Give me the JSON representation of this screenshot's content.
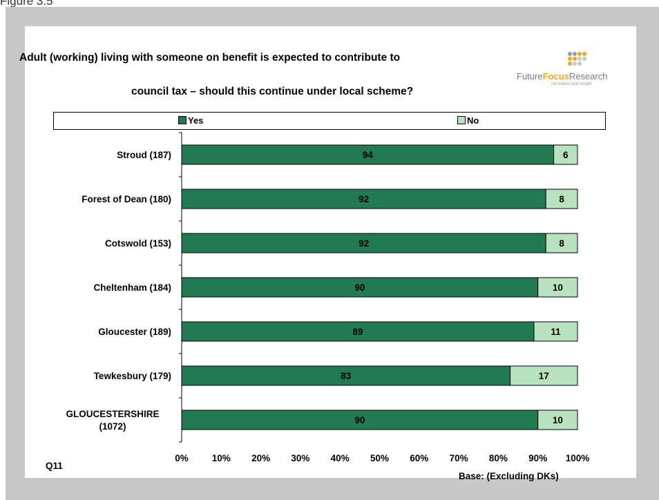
{
  "figure_label": "Figure 3.5",
  "colors": {
    "yes": "#217a52",
    "no": "#b8e2bf",
    "frame": "#c8c8c8",
    "logo_accent": "#f5a623"
  },
  "logo": {
    "name_part1": "Future",
    "name_part2": "Focus",
    "name_part3": "Research",
    "tagline": "Innovation and Insight"
  },
  "footer": {
    "question": "Q11",
    "base": "Base: (Excluding DKs)"
  },
  "chart_data": {
    "type": "bar",
    "orientation": "horizontal",
    "stacked": true,
    "title_line1": "Adult (working) living with someone on benefit is expected to contribute to",
    "title_line2": "council tax – should this continue under local scheme?",
    "categories": [
      "Stroud (187)",
      "Forest of Dean (180)",
      "Cotswold (153)",
      "Cheltenham (184)",
      "Gloucester (189)",
      "Tewkesbury (179)",
      "GLOUCESTERSHIRE (1072)"
    ],
    "category_lines": [
      [
        "Stroud (187)"
      ],
      [
        "Forest of Dean (180)"
      ],
      [
        "Cotswold (153)"
      ],
      [
        "Cheltenham (184)"
      ],
      [
        "Gloucester (189)"
      ],
      [
        "Tewkesbury (179)"
      ],
      [
        "GLOUCESTERSHIRE",
        "(1072)"
      ]
    ],
    "series": [
      {
        "name": "Yes",
        "values": [
          94,
          92,
          92,
          90,
          89,
          83,
          90
        ]
      },
      {
        "name": "No",
        "values": [
          6,
          8,
          8,
          10,
          11,
          17,
          10
        ]
      }
    ],
    "xlim": [
      0,
      100
    ],
    "xticks": [
      "0%",
      "10%",
      "20%",
      "30%",
      "40%",
      "50%",
      "60%",
      "70%",
      "80%",
      "90%",
      "100%"
    ],
    "legend_position": "top",
    "grid": false
  }
}
